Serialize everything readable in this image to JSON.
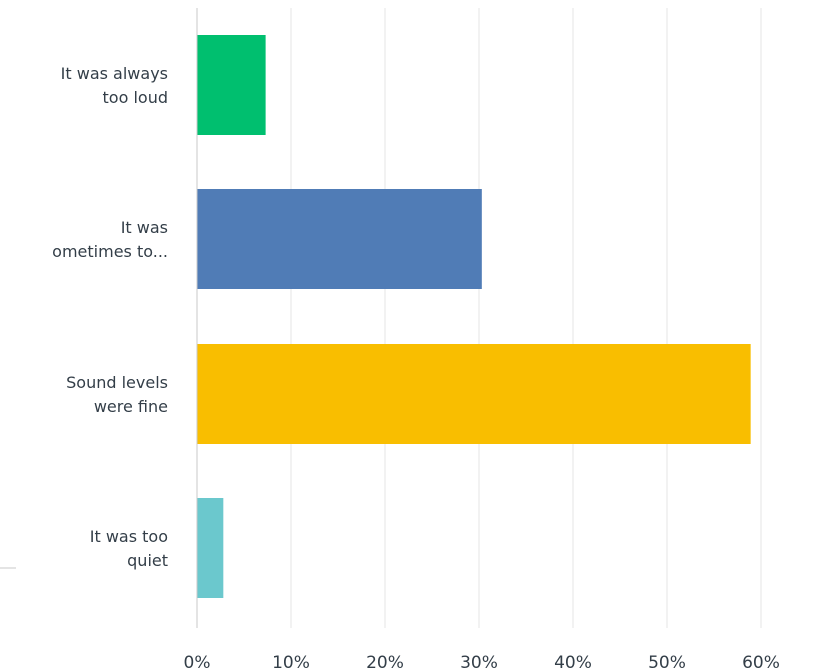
{
  "chart_data": {
    "type": "bar",
    "orientation": "horizontal",
    "categories": [
      [
        "It was always",
        "too loud"
      ],
      [
        "It was",
        "ometimes to..."
      ],
      [
        "Sound levels",
        "were fine"
      ],
      [
        "It was too",
        "quiet"
      ]
    ],
    "values": [
      7.3,
      30.3,
      58.9,
      2.8
    ],
    "colors": [
      "#00bf6f",
      "#507cb6",
      "#f9be00",
      "#6bc8cd"
    ],
    "xlim": [
      0,
      65
    ],
    "xticks": [
      0,
      10,
      20,
      30,
      40,
      50,
      60
    ],
    "tick_labels": [
      "0%",
      "10%",
      "20%",
      "30%",
      "40%",
      "50%",
      "60%"
    ],
    "grid": true,
    "title": "",
    "xlabel": "",
    "ylabel": ""
  }
}
